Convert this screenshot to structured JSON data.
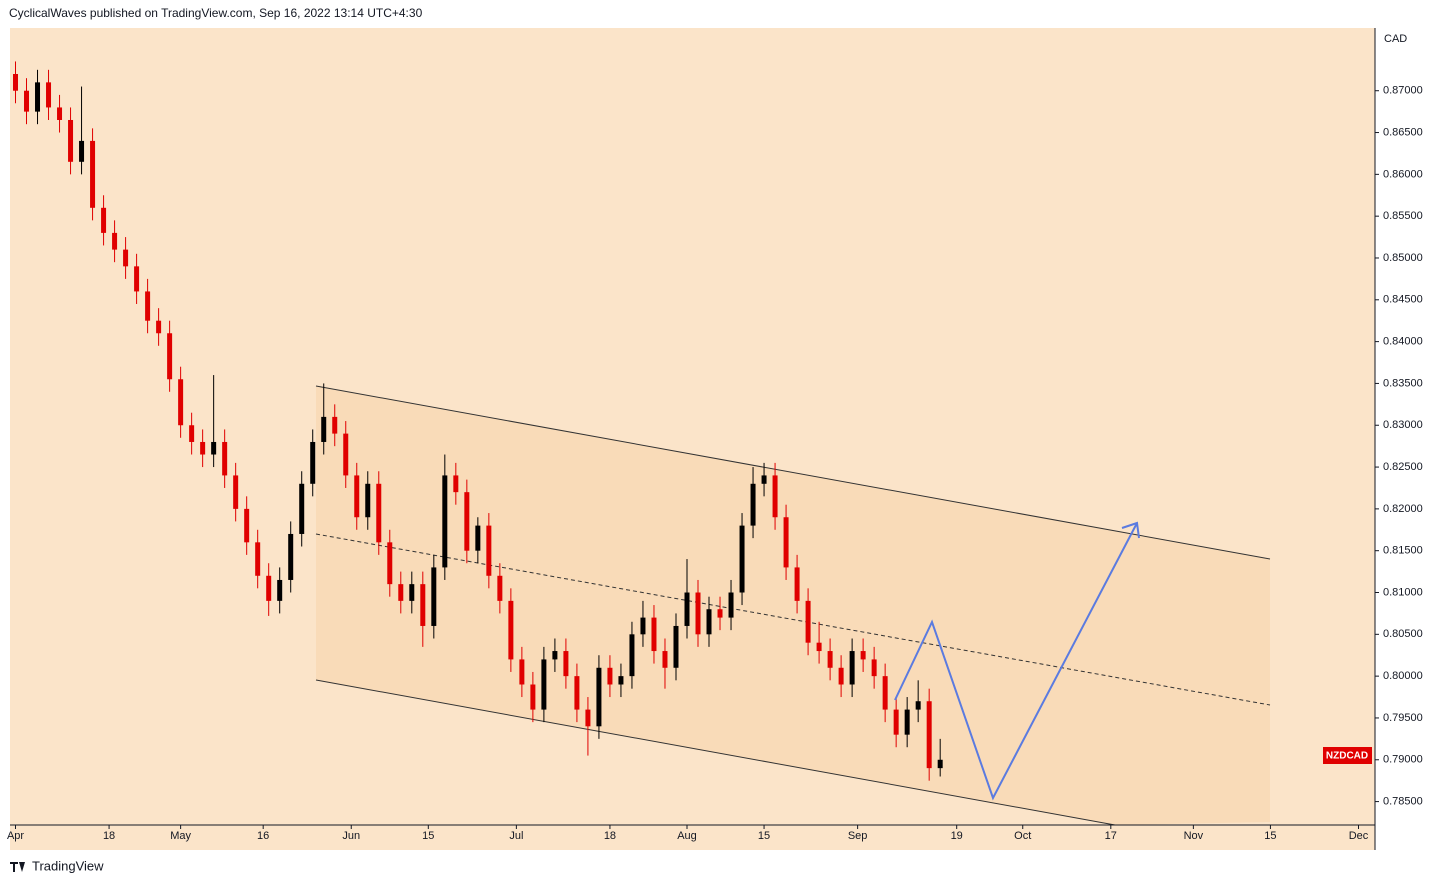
{
  "header": {
    "title": "CyclicalWaves published on TradingView.com, Sep 16, 2022 13:14 UTC+4:30"
  },
  "footer": {
    "brand": "TradingView"
  },
  "chart_data": {
    "type": "candlestick",
    "symbol": "NZDCAD",
    "currency": "CAD",
    "up_color": "#000000",
    "down_color": "#e00000",
    "xlim": [
      -1,
      247
    ],
    "ylim": [
      0.7822,
      0.8775
    ],
    "xticks": [
      {
        "value": 0,
        "label": "Apr"
      },
      {
        "value": 17,
        "label": "18"
      },
      {
        "value": 30,
        "label": "May"
      },
      {
        "value": 45,
        "label": "16"
      },
      {
        "value": 61,
        "label": "Jun"
      },
      {
        "value": 75,
        "label": "15"
      },
      {
        "value": 91,
        "label": "Jul"
      },
      {
        "value": 108,
        "label": "18"
      },
      {
        "value": 122,
        "label": "Aug"
      },
      {
        "value": 136,
        "label": "15"
      },
      {
        "value": 153,
        "label": "Sep"
      },
      {
        "value": 171,
        "label": "19"
      },
      {
        "value": 183,
        "label": "Oct"
      },
      {
        "value": 199,
        "label": "17"
      },
      {
        "value": 214,
        "label": "Nov"
      },
      {
        "value": 228,
        "label": "15"
      },
      {
        "value": 244,
        "label": "Dec"
      }
    ],
    "yticks": [
      {
        "value": 0.785,
        "label": "0.78500"
      },
      {
        "value": 0.79,
        "label": "0.79000"
      },
      {
        "value": 0.795,
        "label": "0.79500"
      },
      {
        "value": 0.8,
        "label": "0.80000"
      },
      {
        "value": 0.805,
        "label": "0.80500"
      },
      {
        "value": 0.81,
        "label": "0.81000"
      },
      {
        "value": 0.815,
        "label": "0.81500"
      },
      {
        "value": 0.82,
        "label": "0.82000"
      },
      {
        "value": 0.825,
        "label": "0.82500"
      },
      {
        "value": 0.83,
        "label": "0.83000"
      },
      {
        "value": 0.835,
        "label": "0.83500"
      },
      {
        "value": 0.84,
        "label": "0.84000"
      },
      {
        "value": 0.845,
        "label": "0.84500"
      },
      {
        "value": 0.85,
        "label": "0.85000"
      },
      {
        "value": 0.855,
        "label": "0.85500"
      },
      {
        "value": 0.86,
        "label": "0.86000"
      },
      {
        "value": 0.865,
        "label": "0.86500"
      },
      {
        "value": 0.87,
        "label": "0.87000"
      }
    ],
    "x": [
      0,
      2,
      4,
      6,
      8,
      10,
      12,
      14,
      16,
      18,
      20,
      22,
      24,
      26,
      28,
      30,
      32,
      34,
      36,
      38,
      40,
      42,
      44,
      46,
      48,
      50,
      52,
      54,
      56,
      58,
      60,
      62,
      64,
      66,
      68,
      70,
      72,
      74,
      76,
      78,
      80,
      82,
      84,
      86,
      88,
      90,
      92,
      94,
      96,
      98,
      100,
      102,
      104,
      106,
      108,
      110,
      112,
      114,
      116,
      118,
      120,
      122,
      124,
      126,
      128,
      130,
      132,
      134,
      136,
      138,
      140,
      142,
      144,
      146,
      148,
      150,
      152,
      154,
      156,
      158,
      160,
      162,
      164,
      166,
      168
    ],
    "open": [
      0.872,
      0.87,
      0.8675,
      0.871,
      0.868,
      0.8665,
      0.8615,
      0.864,
      0.856,
      0.853,
      0.851,
      0.849,
      0.846,
      0.8425,
      0.841,
      0.8355,
      0.83,
      0.828,
      0.8265,
      0.828,
      0.824,
      0.82,
      0.816,
      0.812,
      0.809,
      0.8115,
      0.817,
      0.823,
      0.828,
      0.831,
      0.829,
      0.824,
      0.819,
      0.823,
      0.816,
      0.811,
      0.809,
      0.811,
      0.806,
      0.813,
      0.824,
      0.822,
      0.815,
      0.818,
      0.812,
      0.809,
      0.802,
      0.799,
      0.796,
      0.802,
      0.803,
      0.8,
      0.796,
      0.794,
      0.801,
      0.799,
      0.8,
      0.805,
      0.807,
      0.803,
      0.801,
      0.806,
      0.81,
      0.805,
      0.808,
      0.807,
      0.81,
      0.818,
      0.823,
      0.824,
      0.819,
      0.813,
      0.809,
      0.804,
      0.803,
      0.801,
      0.799,
      0.803,
      0.802,
      0.8,
      0.796,
      0.793,
      0.796,
      0.797,
      0.789
    ],
    "high": [
      0.8735,
      0.8715,
      0.8725,
      0.8725,
      0.8695,
      0.868,
      0.8705,
      0.8655,
      0.8575,
      0.8545,
      0.8525,
      0.8505,
      0.8475,
      0.844,
      0.8425,
      0.837,
      0.8315,
      0.8295,
      0.836,
      0.8295,
      0.8255,
      0.8215,
      0.8175,
      0.8135,
      0.813,
      0.8185,
      0.8245,
      0.8295,
      0.835,
      0.8325,
      0.8305,
      0.8255,
      0.8245,
      0.8245,
      0.8175,
      0.8125,
      0.8125,
      0.8125,
      0.8145,
      0.8265,
      0.8255,
      0.8235,
      0.819,
      0.8195,
      0.8135,
      0.8105,
      0.8035,
      0.8005,
      0.8035,
      0.8045,
      0.8045,
      0.8015,
      0.7975,
      0.8025,
      0.8025,
      0.8015,
      0.8065,
      0.809,
      0.8085,
      0.8045,
      0.8075,
      0.814,
      0.8115,
      0.8095,
      0.8095,
      0.8115,
      0.8195,
      0.825,
      0.8255,
      0.8255,
      0.8205,
      0.8145,
      0.8105,
      0.8065,
      0.8045,
      0.8025,
      0.8045,
      0.8045,
      0.8035,
      0.8015,
      0.7975,
      0.7975,
      0.7995,
      0.7985,
      0.7925
    ],
    "low": [
      0.8685,
      0.866,
      0.866,
      0.8665,
      0.865,
      0.86,
      0.86,
      0.8545,
      0.8515,
      0.8495,
      0.8475,
      0.8445,
      0.841,
      0.8395,
      0.834,
      0.8285,
      0.8265,
      0.825,
      0.825,
      0.8225,
      0.8185,
      0.8145,
      0.8105,
      0.8072,
      0.8075,
      0.81,
      0.8155,
      0.8215,
      0.8265,
      0.8275,
      0.8225,
      0.8175,
      0.8175,
      0.8145,
      0.8095,
      0.8075,
      0.8075,
      0.8035,
      0.8045,
      0.8115,
      0.8205,
      0.8135,
      0.8135,
      0.8105,
      0.8075,
      0.8005,
      0.7975,
      0.7945,
      0.7945,
      0.8005,
      0.7985,
      0.7945,
      0.7905,
      0.7925,
      0.7975,
      0.7975,
      0.7985,
      0.8035,
      0.8015,
      0.7985,
      0.7995,
      0.8045,
      0.8035,
      0.8035,
      0.8055,
      0.8055,
      0.8085,
      0.8165,
      0.8215,
      0.8175,
      0.8115,
      0.8075,
      0.8025,
      0.8015,
      0.7995,
      0.7975,
      0.7975,
      0.8005,
      0.7985,
      0.7945,
      0.7915,
      0.7915,
      0.7945,
      0.7875,
      0.788
    ],
    "close": [
      0.87,
      0.8675,
      0.871,
      0.868,
      0.8665,
      0.8615,
      0.864,
      0.856,
      0.853,
      0.851,
      0.849,
      0.846,
      0.8425,
      0.841,
      0.8355,
      0.83,
      0.828,
      0.8265,
      0.828,
      0.824,
      0.82,
      0.816,
      0.812,
      0.809,
      0.8115,
      0.817,
      0.823,
      0.828,
      0.831,
      0.829,
      0.824,
      0.819,
      0.823,
      0.816,
      0.811,
      0.809,
      0.811,
      0.806,
      0.813,
      0.824,
      0.822,
      0.815,
      0.818,
      0.812,
      0.809,
      0.802,
      0.799,
      0.796,
      0.802,
      0.803,
      0.8,
      0.796,
      0.794,
      0.801,
      0.799,
      0.8,
      0.805,
      0.807,
      0.803,
      0.801,
      0.806,
      0.81,
      0.805,
      0.808,
      0.807,
      0.81,
      0.818,
      0.823,
      0.824,
      0.819,
      0.813,
      0.809,
      0.804,
      0.803,
      0.801,
      0.799,
      0.803,
      0.802,
      0.8,
      0.796,
      0.793,
      0.796,
      0.797,
      0.789,
      0.79
    ]
  }
}
